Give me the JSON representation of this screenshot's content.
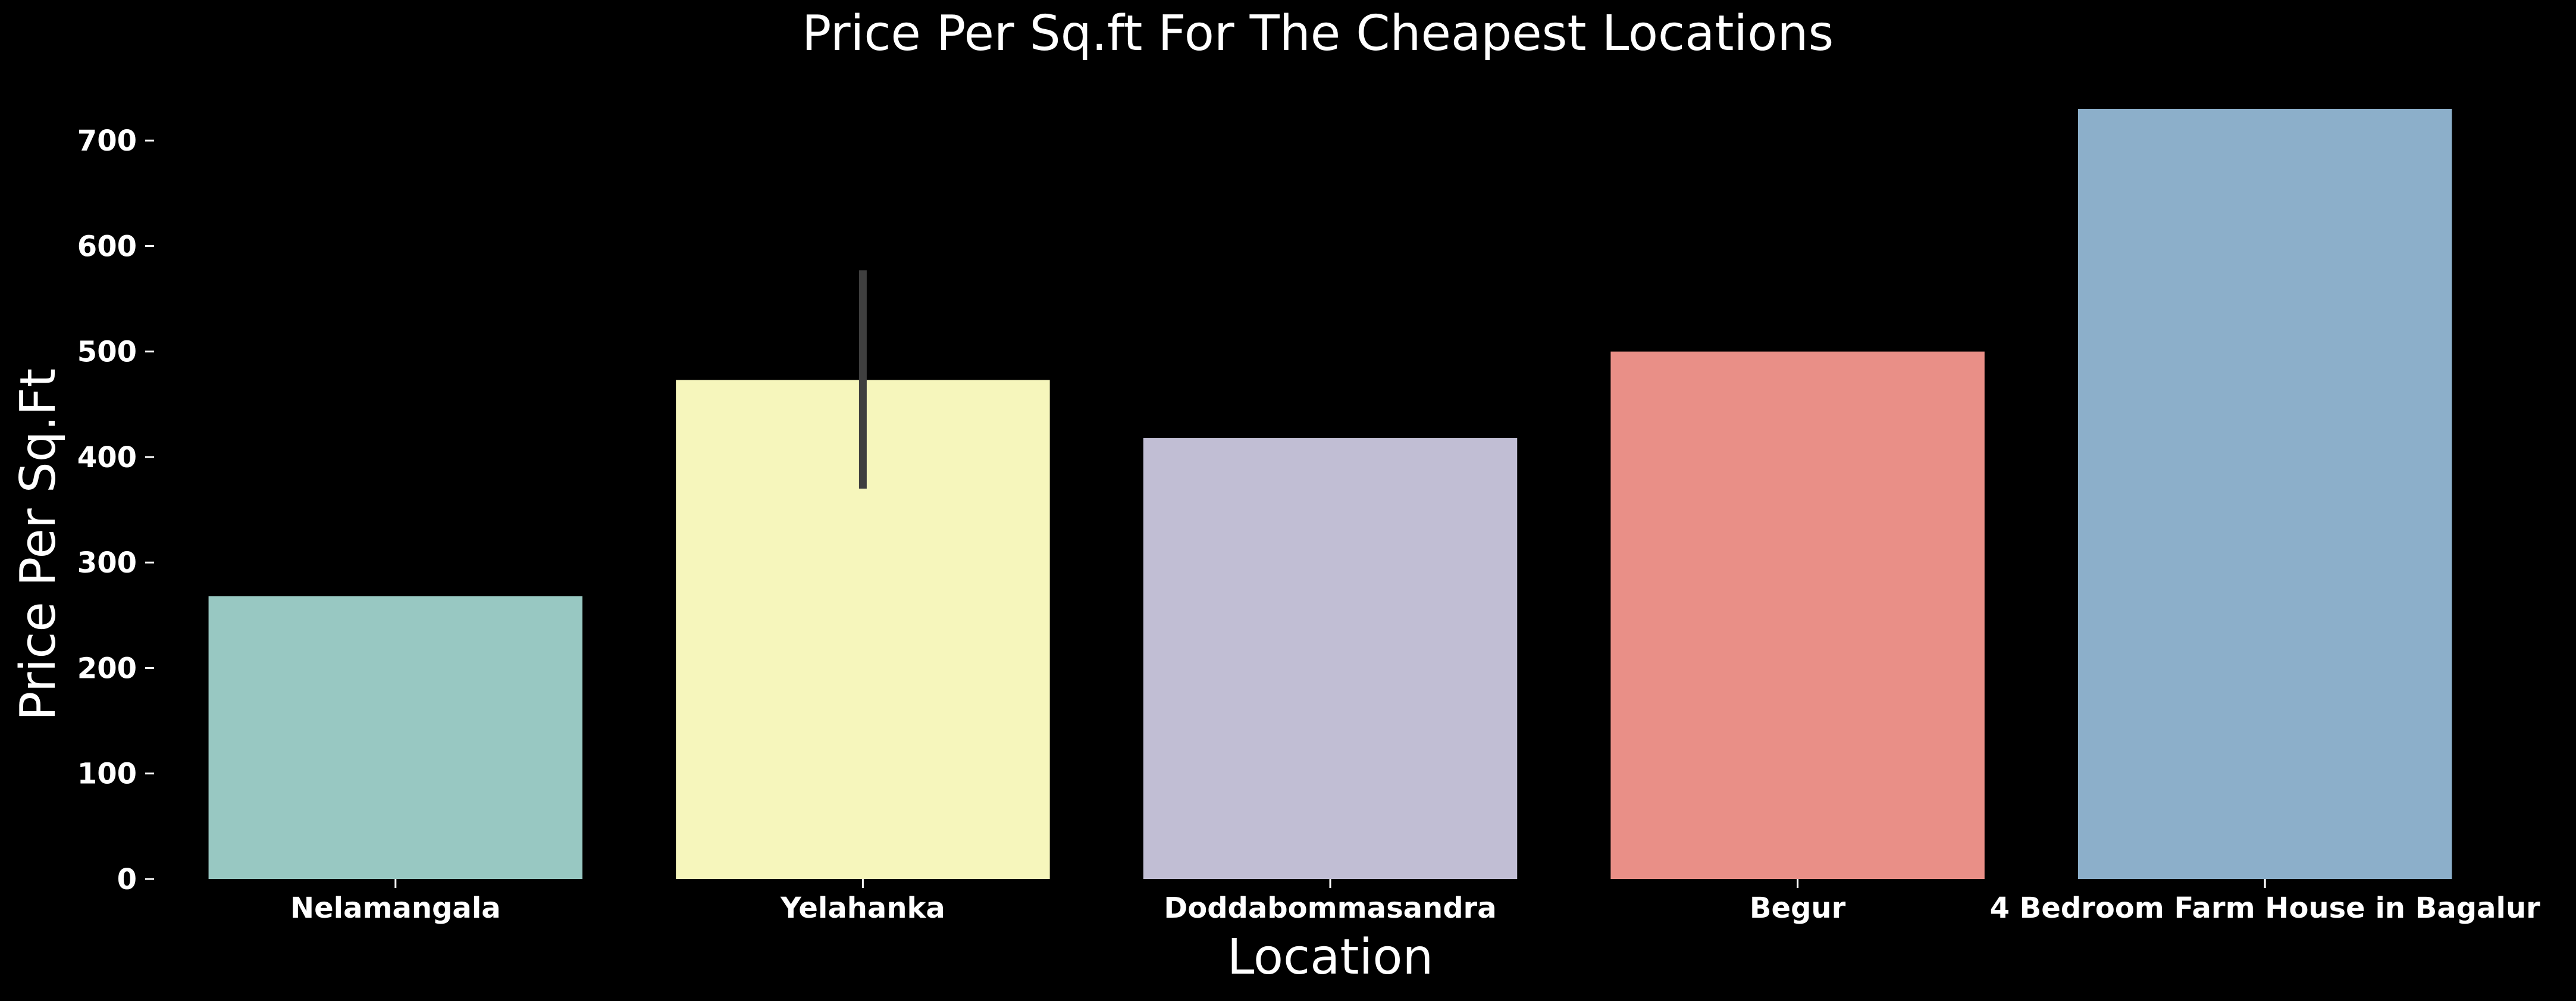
{
  "chart_data": {
    "type": "bar",
    "title": "Price Per Sq.ft For The Cheapest Locations",
    "xlabel": "Location",
    "ylabel": "Price Per Sq.Ft",
    "ylim": [
      0,
      730
    ],
    "yticks": [
      0,
      100,
      200,
      300,
      400,
      500,
      600,
      700
    ],
    "grid": false,
    "background": "#000000",
    "categories": [
      "Nelamangala",
      "Yelahanka",
      "Doddabommasandra",
      "Begur",
      "4 Bedroom Farm House in Bagalur"
    ],
    "values": [
      268,
      473,
      418,
      500,
      730
    ],
    "colors": [
      "#98c8c2",
      "#f6f6bc",
      "#c1bed4",
      "#e98f87",
      "#8cafca"
    ],
    "error_bars": [
      null,
      {
        "low": 370,
        "high": 577
      },
      null,
      null,
      null
    ],
    "error_bar_color": "#3f3f3f"
  }
}
